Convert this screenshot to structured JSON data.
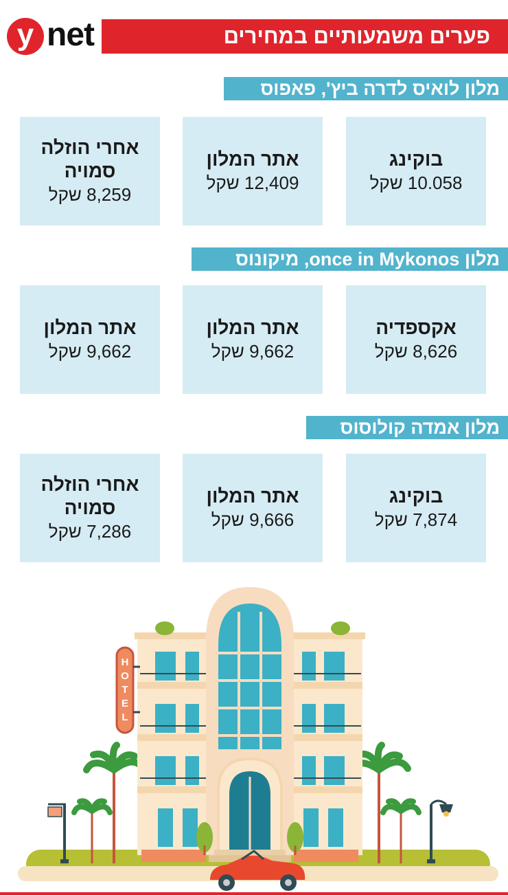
{
  "logo": {
    "y": "y",
    "net": "net"
  },
  "headline": "פערים משמעותיים במחירים",
  "sections": [
    {
      "title": "מלון לואיס לדרה ביץ', פאפוס",
      "boxes": [
        {
          "label": "בוקינג",
          "price": "10.058 שקל"
        },
        {
          "label": "אתר המלון",
          "price": "12,409 שקל"
        },
        {
          "label": "אחרי הוזלה סמויה",
          "price": "8,259 שקל"
        }
      ]
    },
    {
      "title": "מלון once in Mykonos, מיקונוס",
      "boxes": [
        {
          "label": "אקספדיה",
          "price": "8,626 שקל"
        },
        {
          "label": "אתר המלון",
          "price": "9,662 שקל"
        },
        {
          "label": "אתר המלון",
          "price": "9,662 שקל"
        }
      ]
    },
    {
      "title": "מלון אמדה קולוסוס",
      "boxes": [
        {
          "label": "בוקינג",
          "price": "7,874 שקל"
        },
        {
          "label": "אתר המלון",
          "price": "9,666 שקל"
        },
        {
          "label": "אחרי הוזלה סמויה",
          "price": "7,286 שקל"
        }
      ]
    }
  ],
  "illustration": {
    "sign_text": "HOTEL",
    "icon": "hotel-building-illustration"
  },
  "colors": {
    "brand_red": "#e0242c",
    "section_blue": "#52b3cd",
    "box_bg": "#d6ecf4"
  }
}
